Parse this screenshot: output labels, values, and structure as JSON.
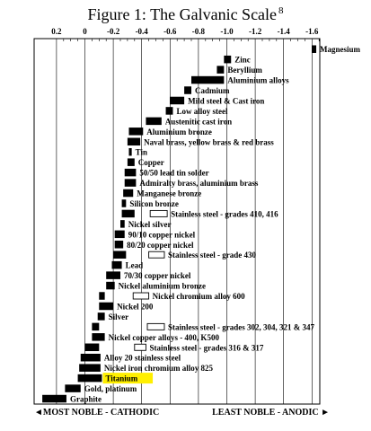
{
  "figure": {
    "title": "Figure 1: The Galvanic Scale",
    "footnote_ref": "8",
    "left_label": "◄MOST NOBLE - CATHODIC",
    "right_label": "LEAST NOBLE - ANODIC ►"
  },
  "chart_data": {
    "type": "bar",
    "title": "Figure 1: The Galvanic Scale",
    "x_axis_label": "",
    "x_axis_position": "top",
    "x_direction": "decreasing-left-to-right",
    "x_ticks": [
      "0.2",
      "0",
      "-0.2",
      "-0.4",
      "-0.6",
      "-0.8",
      "-1.0",
      "-1.2",
      "-1.4",
      "-1.6"
    ],
    "xlim": [
      0.3,
      -1.7
    ],
    "grid": true,
    "bar_color": "#000000",
    "highlight_color": "#ffef00",
    "passive_bar_style": "open rectangle",
    "materials": [
      {
        "name": "Magnesium",
        "range": [
          -1.6,
          -1.63
        ]
      },
      {
        "name": "Zinc",
        "range": [
          -0.98,
          -1.03
        ]
      },
      {
        "name": "Beryllium",
        "range": [
          -0.93,
          -0.98
        ]
      },
      {
        "name": "Aluminium alloys",
        "range": [
          -0.75,
          -0.98
        ]
      },
      {
        "name": "Cadmium",
        "range": [
          -0.7,
          -0.75
        ]
      },
      {
        "name": "Mild steel & Cast iron",
        "range": [
          -0.6,
          -0.7
        ]
      },
      {
        "name": "Low alloy steel",
        "range": [
          -0.57,
          -0.62
        ]
      },
      {
        "name": "Austenitic cast iron",
        "range": [
          -0.43,
          -0.54
        ]
      },
      {
        "name": "Aluminium bronze",
        "range": [
          -0.31,
          -0.41
        ]
      },
      {
        "name": "Naval brass, yellow brass & red brass",
        "range": [
          -0.3,
          -0.39
        ]
      },
      {
        "name": "Tin",
        "range": [
          -0.31,
          -0.33
        ]
      },
      {
        "name": "Copper",
        "range": [
          -0.3,
          -0.35
        ]
      },
      {
        "name": "50/50 lead tin solder",
        "range": [
          -0.28,
          -0.36
        ]
      },
      {
        "name": "Admiralty brass, aluminium brass",
        "range": [
          -0.28,
          -0.36
        ]
      },
      {
        "name": "Manganese bronze",
        "range": [
          -0.27,
          -0.34
        ]
      },
      {
        "name": "Silicon bronze",
        "range": [
          -0.26,
          -0.29
        ]
      },
      {
        "name": "Stainless steel - grades 410, 416",
        "range": [
          -0.26,
          -0.35
        ],
        "passive_range": [
          -0.46,
          -0.58
        ]
      },
      {
        "name": "Nickel silver",
        "range": [
          -0.25,
          -0.28
        ]
      },
      {
        "name": "90/10 copper nickel",
        "range": [
          -0.21,
          -0.28
        ]
      },
      {
        "name": "80/20 copper nickel",
        "range": [
          -0.21,
          -0.27
        ]
      },
      {
        "name": "Stainless steel - grade 430",
        "range": [
          -0.2,
          -0.29
        ],
        "passive_range": [
          -0.45,
          -0.56
        ]
      },
      {
        "name": "Lead",
        "range": [
          -0.19,
          -0.26
        ]
      },
      {
        "name": "70/30 copper nickel",
        "range": [
          -0.15,
          -0.25
        ]
      },
      {
        "name": "Nickel aluminium bronze",
        "range": [
          -0.15,
          -0.21
        ]
      },
      {
        "name": "Nickel chromium alloy 600",
        "range": [
          -0.1,
          -0.14
        ],
        "passive_range": [
          -0.34,
          -0.45
        ]
      },
      {
        "name": "Nickel 200",
        "range": [
          -0.1,
          -0.2
        ]
      },
      {
        "name": "Silver",
        "range": [
          -0.09,
          -0.14
        ]
      },
      {
        "name": "Stainless steel - grades 302, 304, 321 & 347",
        "range": [
          -0.05,
          -0.1
        ],
        "passive_range": [
          -0.44,
          -0.56
        ]
      },
      {
        "name": "Nickel copper alloys - 400, K500",
        "range": [
          -0.05,
          -0.14
        ]
      },
      {
        "name": "Stainless steel - grades 316 & 317",
        "range": [
          0.0,
          -0.1
        ],
        "passive_range": [
          -0.35,
          -0.43
        ]
      },
      {
        "name": "Alloy 20 stainless steel",
        "range": [
          0.03,
          -0.11
        ]
      },
      {
        "name": "Nickel iron chromium alloy 825",
        "range": [
          0.04,
          -0.11
        ]
      },
      {
        "name": "Titanium",
        "range": [
          0.05,
          -0.12
        ],
        "highlight": true
      },
      {
        "name": "Gold, platinum",
        "range": [
          0.14,
          0.03
        ]
      },
      {
        "name": "Graphite",
        "range": [
          0.3,
          0.13
        ]
      }
    ]
  }
}
